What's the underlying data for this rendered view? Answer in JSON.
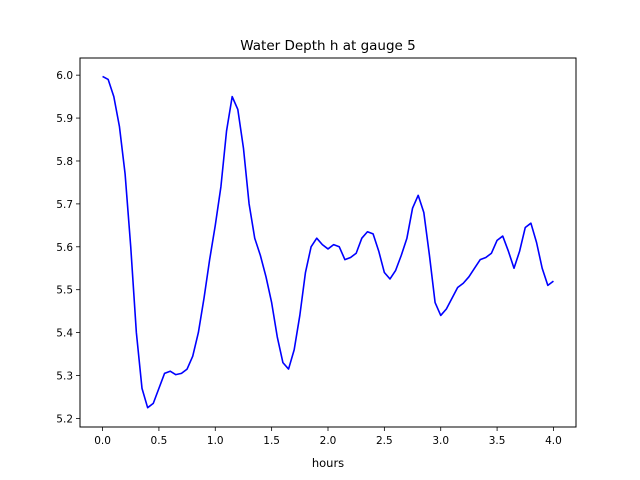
{
  "chart_data": {
    "type": "line",
    "title": "Water Depth h at gauge 5",
    "xlabel": "hours",
    "ylabel": "",
    "xlim": [
      -0.2,
      4.2
    ],
    "ylim": [
      5.18,
      6.04
    ],
    "xticks": [
      "0.0",
      "0.5",
      "1.0",
      "1.5",
      "2.0",
      "2.5",
      "3.0",
      "3.5",
      "4.0"
    ],
    "yticks": [
      "5.2",
      "5.3",
      "5.4",
      "5.5",
      "5.6",
      "5.7",
      "5.8",
      "5.9",
      "6.0"
    ],
    "grid": false,
    "legend": "none",
    "series": [
      {
        "color": "#0000ff",
        "x": [
          0.0,
          0.05,
          0.1,
          0.15,
          0.2,
          0.25,
          0.3,
          0.35,
          0.4,
          0.45,
          0.5,
          0.55,
          0.6,
          0.65,
          0.7,
          0.75,
          0.8,
          0.85,
          0.9,
          0.95,
          1.0,
          1.05,
          1.1,
          1.15,
          1.2,
          1.25,
          1.3,
          1.35,
          1.4,
          1.45,
          1.5,
          1.55,
          1.6,
          1.65,
          1.7,
          1.75,
          1.8,
          1.85,
          1.9,
          1.95,
          2.0,
          2.05,
          2.1,
          2.15,
          2.2,
          2.25,
          2.3,
          2.35,
          2.4,
          2.45,
          2.5,
          2.55,
          2.6,
          2.65,
          2.7,
          2.75,
          2.8,
          2.85,
          2.9,
          2.95,
          3.0,
          3.05,
          3.1,
          3.15,
          3.2,
          3.25,
          3.3,
          3.35,
          3.4,
          3.45,
          3.5,
          3.55,
          3.6,
          3.65,
          3.7,
          3.75,
          3.8,
          3.85,
          3.9,
          3.95,
          4.0
        ],
        "y": [
          5.997,
          5.99,
          5.95,
          5.88,
          5.77,
          5.6,
          5.4,
          5.27,
          5.225,
          5.235,
          5.27,
          5.305,
          5.31,
          5.302,
          5.305,
          5.315,
          5.345,
          5.4,
          5.48,
          5.57,
          5.65,
          5.74,
          5.87,
          5.95,
          5.92,
          5.83,
          5.7,
          5.62,
          5.58,
          5.53,
          5.47,
          5.39,
          5.33,
          5.315,
          5.36,
          5.44,
          5.54,
          5.6,
          5.62,
          5.605,
          5.595,
          5.605,
          5.6,
          5.57,
          5.575,
          5.585,
          5.62,
          5.635,
          5.63,
          5.59,
          5.54,
          5.525,
          5.545,
          5.58,
          5.62,
          5.69,
          5.72,
          5.68,
          5.58,
          5.47,
          5.44,
          5.455,
          5.48,
          5.505,
          5.515,
          5.53,
          5.55,
          5.57,
          5.575,
          5.585,
          5.615,
          5.625,
          5.59,
          5.55,
          5.59,
          5.645,
          5.655,
          5.61,
          5.55,
          5.51,
          5.52
        ]
      }
    ]
  }
}
